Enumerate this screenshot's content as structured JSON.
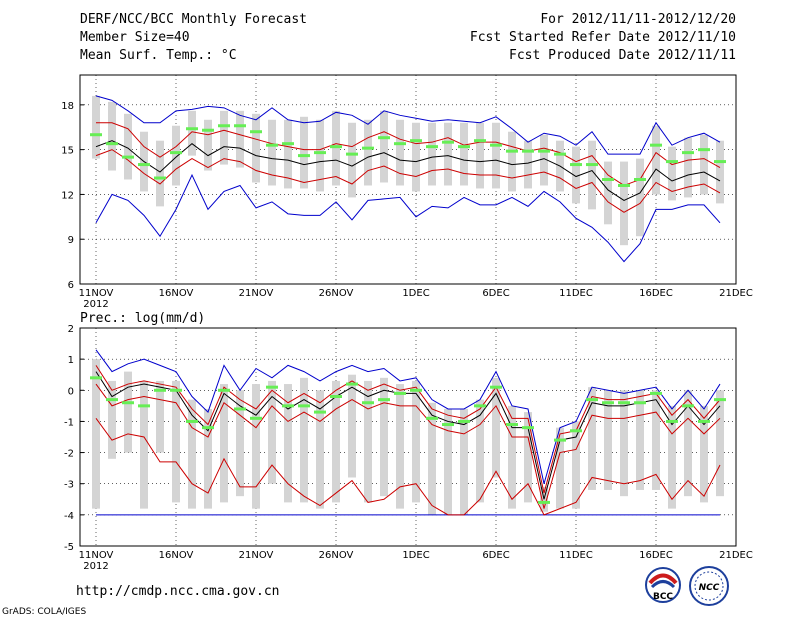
{
  "header": {
    "left_line1": "DERF/NCC/BCC Monthly Forecast",
    "left_line2": "Member Size=40",
    "left_line3": "Mean Surf. Temp.: °C",
    "right_line1": "For 2012/11/11-2012/12/20",
    "right_line2": "Fcst Started Refer Date 2012/11/10",
    "right_line3": "Fcst Produced Date 2012/11/11"
  },
  "footer": {
    "url": "http://cmdp.ncc.cma.gov.cn",
    "credit": "GrADS: COLA/IGES",
    "logo_bcc_text": "BCC",
    "logo_ncc_text": "NCC"
  },
  "colors": {
    "max_min": "#0000cc",
    "spread": "#cc0000",
    "mean": "#000000",
    "median": "#66ee55",
    "box": "#d4d4d4"
  },
  "chart_data": [
    {
      "type": "box-line",
      "title": "Mean Surf. Temp.: °C",
      "xlabel": "",
      "ylabel": "°C",
      "ylim": [
        6,
        20
      ],
      "yticks": [
        6,
        9,
        12,
        15,
        18
      ],
      "grid": true,
      "x_tick_labels": [
        "11NOV",
        "16NOV",
        "21NOV",
        "26NOV",
        "1DEC",
        "6DEC",
        "11DEC",
        "16DEC",
        "21DEC"
      ],
      "x_tick_days": [
        0,
        5,
        10,
        15,
        20,
        25,
        30,
        35,
        40
      ],
      "x_year_label": "2012",
      "series": [
        {
          "name": "max",
          "values": [
            18.6,
            18.3,
            17.6,
            16.8,
            16.8,
            17.6,
            17.7,
            17.9,
            17.8,
            17.3,
            17.0,
            17.8,
            17.0,
            16.8,
            16.9,
            17.5,
            17.3,
            16.7,
            17.6,
            17.3,
            17.1,
            16.9,
            17.0,
            16.9,
            16.8,
            17.2,
            16.4,
            15.5,
            16.1,
            15.9,
            15.3,
            16.2,
            14.7,
            14.7,
            14.7,
            16.8,
            15.3,
            15.8,
            16.1,
            15.5
          ]
        },
        {
          "name": "plus_sd",
          "values": [
            16.8,
            16.8,
            16.4,
            15.2,
            14.5,
            15.2,
            16.2,
            16.0,
            16.3,
            16.0,
            15.7,
            15.4,
            15.2,
            15.0,
            15.0,
            15.4,
            15.2,
            15.8,
            16.2,
            15.7,
            15.4,
            15.5,
            15.8,
            15.3,
            15.5,
            15.5,
            15.2,
            14.9,
            15.1,
            14.8,
            14.2,
            14.6,
            13.3,
            12.6,
            13.0,
            14.8,
            14.0,
            14.3,
            14.4,
            13.8
          ]
        },
        {
          "name": "mean",
          "values": [
            15.2,
            15.6,
            15.1,
            14.2,
            13.5,
            14.5,
            15.4,
            14.6,
            15.2,
            15.1,
            14.6,
            14.4,
            14.3,
            14.0,
            14.2,
            14.3,
            13.9,
            14.5,
            14.8,
            14.3,
            14.2,
            14.5,
            14.6,
            14.3,
            14.2,
            14.3,
            14.0,
            14.1,
            14.4,
            13.9,
            13.2,
            13.6,
            12.3,
            11.6,
            12.1,
            13.7,
            12.9,
            13.3,
            13.5,
            12.9
          ]
        },
        {
          "name": "minus_sd",
          "values": [
            14.6,
            15.0,
            14.3,
            13.4,
            12.7,
            13.7,
            14.4,
            13.8,
            14.4,
            14.2,
            13.6,
            13.3,
            13.1,
            12.8,
            13.0,
            13.2,
            12.7,
            13.6,
            13.9,
            13.4,
            13.2,
            13.6,
            13.7,
            13.4,
            13.3,
            13.3,
            13.1,
            13.3,
            13.5,
            13.1,
            12.4,
            12.8,
            11.5,
            10.8,
            11.4,
            12.8,
            12.2,
            12.5,
            12.7,
            12.1
          ]
        },
        {
          "name": "min",
          "values": [
            10.1,
            12.0,
            11.6,
            10.6,
            9.2,
            11.0,
            13.3,
            11.0,
            12.2,
            12.6,
            11.1,
            11.5,
            10.7,
            10.6,
            10.6,
            11.5,
            10.3,
            11.6,
            11.7,
            11.8,
            10.5,
            11.2,
            11.1,
            11.8,
            11.3,
            11.3,
            11.8,
            11.2,
            12.2,
            11.5,
            10.4,
            9.8,
            8.8,
            7.5,
            8.7,
            11.0,
            11.0,
            11.3,
            11.3,
            10.1
          ]
        },
        {
          "name": "median",
          "values": [
            16.0,
            15.4,
            14.5,
            14.0,
            13.1,
            14.8,
            16.4,
            16.3,
            16.6,
            16.6,
            16.2,
            15.3,
            15.4,
            14.6,
            14.8,
            15.2,
            14.7,
            15.1,
            15.8,
            15.4,
            15.6,
            15.2,
            15.5,
            15.2,
            15.6,
            15.3,
            14.9,
            14.9,
            14.9,
            14.7,
            14.0,
            14.0,
            13.0,
            12.6,
            13.0,
            15.3,
            14.2,
            14.8,
            15.0,
            14.2
          ]
        },
        {
          "name": "box_high",
          "values": [
            18.6,
            18.2,
            17.4,
            16.2,
            15.6,
            16.6,
            17.6,
            17.0,
            17.6,
            17.6,
            17.4,
            17.0,
            17.0,
            17.2,
            17.0,
            17.6,
            16.8,
            17.0,
            17.6,
            17.0,
            16.8,
            16.8,
            16.8,
            16.8,
            16.8,
            16.8,
            16.2,
            15.6,
            16.0,
            15.6,
            15.2,
            15.6,
            14.2,
            14.2,
            14.4,
            16.6,
            15.2,
            15.8,
            16.0,
            15.6
          ]
        },
        {
          "name": "box_low",
          "values": [
            14.4,
            13.6,
            13.0,
            12.2,
            11.2,
            12.6,
            14.6,
            13.6,
            14.0,
            13.8,
            12.8,
            12.6,
            12.4,
            12.4,
            12.2,
            12.6,
            11.8,
            12.6,
            12.8,
            12.6,
            12.2,
            12.6,
            12.6,
            12.6,
            12.4,
            12.4,
            12.2,
            12.4,
            12.6,
            12.2,
            11.4,
            11.0,
            10.0,
            8.6,
            9.2,
            12.0,
            11.6,
            11.8,
            12.0,
            11.4
          ]
        }
      ]
    },
    {
      "type": "box-line",
      "title": "Prec.: log(mm/d)",
      "xlabel": "",
      "ylabel": "log(mm/d)",
      "ylim": [
        -5,
        2
      ],
      "yticks": [
        -5,
        -4,
        -3,
        -2,
        -1,
        0,
        1,
        2
      ],
      "grid": true,
      "x_tick_labels": [
        "11NOV",
        "16NOV",
        "21NOV",
        "26NOV",
        "1DEC",
        "6DEC",
        "11DEC",
        "16DEC",
        "21DEC"
      ],
      "x_tick_days": [
        0,
        5,
        10,
        15,
        20,
        25,
        30,
        35,
        40
      ],
      "x_year_label": "2012",
      "series": [
        {
          "name": "max",
          "values": [
            1.3,
            0.6,
            0.85,
            1.0,
            0.8,
            0.6,
            -0.2,
            -0.7,
            0.8,
            0.0,
            0.7,
            0.4,
            0.8,
            0.6,
            0.3,
            0.6,
            0.8,
            0.6,
            0.7,
            0.3,
            0.4,
            -0.3,
            -0.6,
            -0.6,
            -0.3,
            0.6,
            -0.5,
            -0.6,
            -3.0,
            -1.2,
            -1.0,
            0.1,
            0.0,
            -0.1,
            0.0,
            0.1,
            -0.6,
            0.0,
            -0.6,
            0.2
          ]
        },
        {
          "name": "plus_sd",
          "values": [
            0.8,
            0.0,
            0.2,
            0.3,
            0.2,
            0.1,
            -0.6,
            -1.1,
            0.1,
            -0.3,
            -0.6,
            0.0,
            -0.4,
            -0.1,
            -0.4,
            0.0,
            0.3,
            0.0,
            0.2,
            0.0,
            0.1,
            -0.6,
            -0.8,
            -0.9,
            -0.6,
            0.1,
            -0.9,
            -0.9,
            -3.3,
            -1.4,
            -1.3,
            -0.2,
            -0.3,
            -0.3,
            -0.2,
            -0.1,
            -0.8,
            -0.3,
            -0.9,
            -0.3
          ]
        },
        {
          "name": "mean",
          "values": [
            0.6,
            -0.2,
            0.1,
            0.2,
            0.1,
            0.0,
            -0.8,
            -1.3,
            -0.1,
            -0.5,
            -0.8,
            -0.2,
            -0.6,
            -0.3,
            -0.6,
            -0.2,
            0.1,
            -0.2,
            0.0,
            -0.1,
            -0.1,
            -0.8,
            -1.0,
            -1.1,
            -0.8,
            -0.1,
            -1.2,
            -1.2,
            -3.5,
            -1.6,
            -1.5,
            -0.4,
            -0.5,
            -0.5,
            -0.4,
            -0.3,
            -1.1,
            -0.5,
            -1.1,
            -0.5
          ]
        },
        {
          "name": "minus_sd",
          "values": [
            0.2,
            -0.5,
            -0.3,
            -0.2,
            -0.3,
            -0.4,
            -1.2,
            -1.5,
            -0.4,
            -0.8,
            -1.2,
            -0.5,
            -1.0,
            -0.7,
            -1.0,
            -0.6,
            -0.3,
            -0.6,
            -0.4,
            -0.5,
            -0.5,
            -1.1,
            -1.3,
            -1.4,
            -1.1,
            -0.5,
            -1.5,
            -1.5,
            -3.8,
            -2.0,
            -1.9,
            -0.8,
            -0.9,
            -0.9,
            -0.8,
            -0.7,
            -1.4,
            -0.9,
            -1.4,
            -0.9
          ]
        },
        {
          "name": "min_line",
          "values": [
            -0.9,
            -1.6,
            -1.4,
            -1.5,
            -2.3,
            -2.3,
            -3.0,
            -3.3,
            -2.2,
            -3.1,
            -3.1,
            -2.4,
            -3.0,
            -3.4,
            -3.7,
            -3.3,
            -2.9,
            -3.6,
            -3.5,
            -3.1,
            -3.0,
            -3.7,
            -4.0,
            -4.0,
            -3.5,
            -2.6,
            -3.5,
            -3.0,
            -4.0,
            -3.8,
            -3.6,
            -2.8,
            -2.9,
            -3.0,
            -2.9,
            -2.7,
            -3.5,
            -2.9,
            -3.4,
            -2.4
          ]
        },
        {
          "name": "lower_floor",
          "values": [
            -4.0,
            -4.0,
            -4.0,
            -4.0,
            -4.0,
            -4.0,
            -4.0,
            -4.0,
            -4.0,
            -4.0,
            -4.0,
            -4.0,
            -4.0,
            -4.0,
            -4.0,
            -4.0,
            -4.0,
            -4.0,
            -4.0,
            -4.0,
            -4.0,
            -4.0,
            -4.0,
            -4.0,
            -4.0,
            -4.0,
            -4.0,
            -4.0,
            -4.0,
            -4.0,
            -4.0,
            -4.0,
            -4.0,
            -4.0,
            -4.0,
            -4.0,
            -4.0,
            -4.0,
            -4.0,
            -4.0
          ]
        },
        {
          "name": "median",
          "values": [
            0.4,
            -0.3,
            -0.4,
            -0.5,
            0.0,
            0.0,
            -1.0,
            -1.2,
            0.0,
            -0.6,
            -0.9,
            0.1,
            -0.5,
            -0.5,
            -0.7,
            -0.2,
            0.2,
            -0.4,
            -0.3,
            -0.1,
            0.0,
            -0.9,
            -1.1,
            -1.0,
            -0.5,
            0.1,
            -1.1,
            -1.2,
            -3.6,
            -1.6,
            -1.3,
            -0.3,
            -0.4,
            -0.4,
            -0.4,
            -0.1,
            -1.0,
            -0.5,
            -1.0,
            -0.3
          ]
        },
        {
          "name": "box_high",
          "values": [
            1.0,
            0.3,
            0.6,
            0.3,
            0.3,
            0.3,
            -0.3,
            -0.6,
            0.2,
            0.0,
            0.2,
            0.3,
            0.2,
            0.4,
            0.0,
            0.3,
            0.5,
            0.3,
            0.4,
            0.2,
            0.3,
            -0.4,
            -0.6,
            -0.6,
            -0.3,
            0.4,
            -0.5,
            -0.7,
            -3.1,
            -1.2,
            -1.0,
            0.1,
            0.0,
            0.0,
            0.0,
            0.0,
            -0.5,
            0.0,
            -0.5,
            0.0
          ]
        },
        {
          "name": "box_low",
          "values": [
            -3.8,
            -2.2,
            -2.0,
            -3.8,
            -2.0,
            -3.6,
            -3.8,
            -3.8,
            -3.6,
            -3.4,
            -3.8,
            -3.0,
            -3.6,
            -3.6,
            -3.8,
            -3.6,
            -2.8,
            -3.6,
            -3.4,
            -3.8,
            -3.6,
            -4.0,
            -4.0,
            -4.0,
            -3.6,
            -2.8,
            -3.8,
            -3.6,
            -3.9,
            -3.8,
            -3.8,
            -3.2,
            -3.2,
            -3.4,
            -3.2,
            -3.2,
            -3.8,
            -3.4,
            -3.6,
            -3.4
          ]
        }
      ]
    }
  ]
}
